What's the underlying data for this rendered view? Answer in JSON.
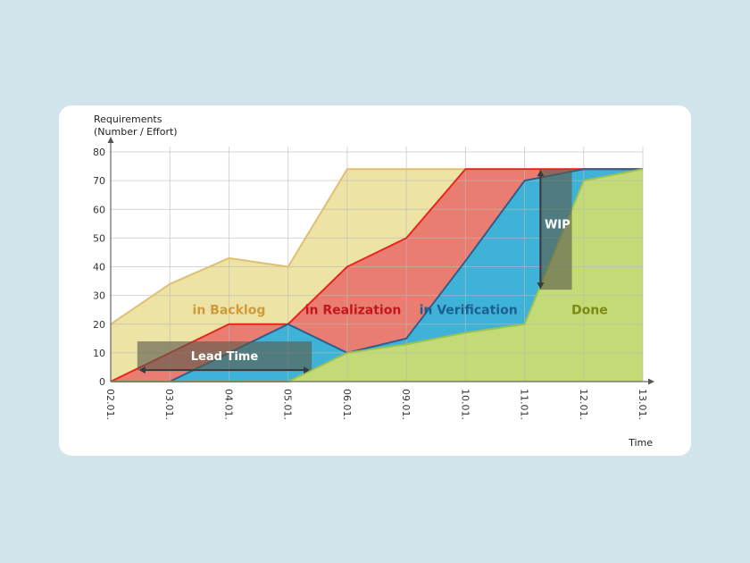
{
  "chart_data": {
    "type": "area",
    "title": "",
    "ylabel_lines": [
      "Requirements",
      "(Number / Effort)"
    ],
    "xlabel": "Time",
    "ylim": [
      0,
      80
    ],
    "yticks": [
      0,
      10,
      20,
      30,
      40,
      50,
      60,
      70,
      80
    ],
    "grid": true,
    "categories": [
      "02.01.",
      "03.01.",
      "04.01.",
      "05.01.",
      "06.01.",
      "09.01.",
      "10.01.",
      "11.01.",
      "12.01.",
      "13.01."
    ],
    "series": [
      {
        "name": "in Backlog",
        "color": "#ede3a5",
        "line_color": "#e0bf72",
        "label_color": "#cf9a3c",
        "label_pos": [
          2,
          25
        ],
        "values": [
          20,
          34,
          43,
          40,
          74,
          74,
          74,
          74,
          74,
          74
        ]
      },
      {
        "name": "in Realization",
        "color": "#e97d72",
        "line_color": "#e8261e",
        "label_color": "#c4171a",
        "label_pos": [
          4.1,
          25
        ],
        "values": [
          0,
          10,
          20,
          20,
          40,
          50,
          74,
          74,
          74,
          74
        ]
      },
      {
        "name": "in Verification",
        "color": "#3fb3d7",
        "line_color": "#2c5f8e",
        "label_color": "#1b5f92",
        "label_pos": [
          6.05,
          25
        ],
        "values": [
          0,
          0,
          10,
          20,
          10,
          15,
          42,
          70,
          74,
          74
        ]
      },
      {
        "name": "Done",
        "color": "#c3da76",
        "line_color": "#9fc14e",
        "label_color": "#7a8a14",
        "label_pos": [
          8.1,
          25
        ],
        "values": [
          0,
          0,
          0,
          0,
          10,
          13,
          17,
          20,
          70,
          74
        ]
      }
    ],
    "annotations": [
      {
        "text": "Lead Time",
        "type": "horizontal-arrow",
        "x": [
          0.45,
          3.4
        ],
        "y": 4,
        "box_x": [
          0.45,
          3.4
        ],
        "box_y": [
          4,
          14
        ],
        "label_y": 9,
        "color": "#ffffff"
      },
      {
        "text": "WIP",
        "type": "vertical-arrow",
        "x": 7.27,
        "y": [
          74,
          32
        ],
        "box_x": [
          7.25,
          7.8
        ],
        "box_y": [
          32,
          74
        ],
        "label_y": 55,
        "color": "#ffffff"
      }
    ]
  }
}
